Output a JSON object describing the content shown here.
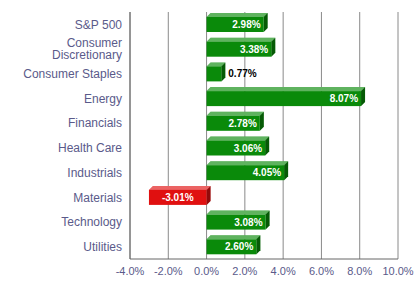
{
  "chart_data": {
    "type": "bar",
    "orientation": "horizontal",
    "categories": [
      "S&P 500",
      "Consumer Discretionary",
      "Consumer Staples",
      "Energy",
      "Financials",
      "Health Care",
      "Industrials",
      "Materials",
      "Technology",
      "Utilities"
    ],
    "values": [
      2.98,
      3.38,
      0.77,
      8.07,
      2.78,
      3.06,
      4.05,
      -3.01,
      3.08,
      2.6
    ],
    "value_labels": [
      "2.98%",
      "3.38%",
      "0.77%",
      "8.07%",
      "2.78%",
      "3.06%",
      "4.05%",
      "-3.01%",
      "3.08%",
      "2.60%"
    ],
    "colors": [
      "#0a8a0a",
      "#0a8a0a",
      "#0a8a0a",
      "#0a8a0a",
      "#0a8a0a",
      "#0a8a0a",
      "#0a8a0a",
      "#e01010",
      "#0a8a0a",
      "#0a8a0a"
    ],
    "data_labels": true,
    "xlim": [
      -4,
      10
    ],
    "xticks": [
      {
        "value": -4,
        "label": "-4.0%"
      },
      {
        "value": -2,
        "label": "-2.0%"
      },
      {
        "value": 0,
        "label": "0.0%"
      },
      {
        "value": 2,
        "label": "2.0%"
      },
      {
        "value": 4,
        "label": "4.0%"
      },
      {
        "value": 6,
        "label": "6.0%"
      },
      {
        "value": 8,
        "label": "8.0%"
      },
      {
        "value": 10,
        "label": "10.0%"
      }
    ],
    "grid": true
  }
}
